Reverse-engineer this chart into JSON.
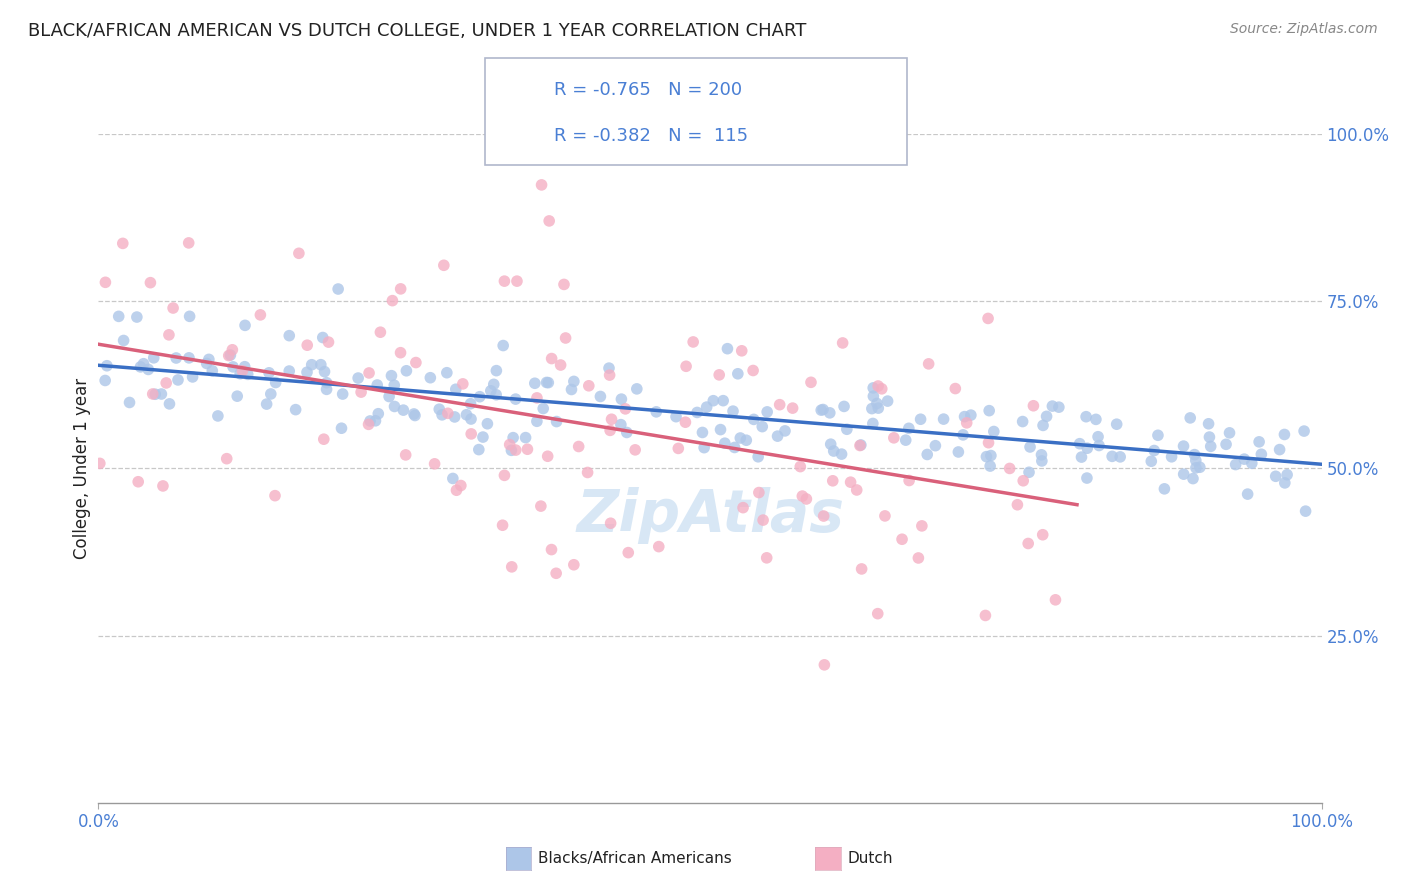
{
  "title": "BLACK/AFRICAN AMERICAN VS DUTCH COLLEGE, UNDER 1 YEAR CORRELATION CHART",
  "source": "Source: ZipAtlas.com",
  "ylabel": "College, Under 1 year",
  "xlabel": "",
  "xlim": [
    0.0,
    1.0
  ],
  "ylim": [
    0.0,
    1.0
  ],
  "x_tick_labels": [
    "0.0%",
    "100.0%"
  ],
  "y_tick_labels": [
    "25.0%",
    "50.0%",
    "75.0%",
    "100.0%"
  ],
  "blue_R": -0.765,
  "blue_N": 200,
  "pink_R": -0.382,
  "pink_N": 115,
  "blue_color": "#adc6e8",
  "pink_color": "#f4afc3",
  "blue_line_color": "#3a6fc4",
  "pink_line_color": "#d9607a",
  "legend_label_blue": "Blacks/African Americans",
  "legend_label_pink": "Dutch",
  "watermark": "ZipAtlas",
  "background_color": "#ffffff",
  "grid_color": "#c8c8c8",
  "title_color": "#222222",
  "axis_label_color": "#4a7fd4",
  "seed_blue": 42,
  "seed_pink": 7
}
